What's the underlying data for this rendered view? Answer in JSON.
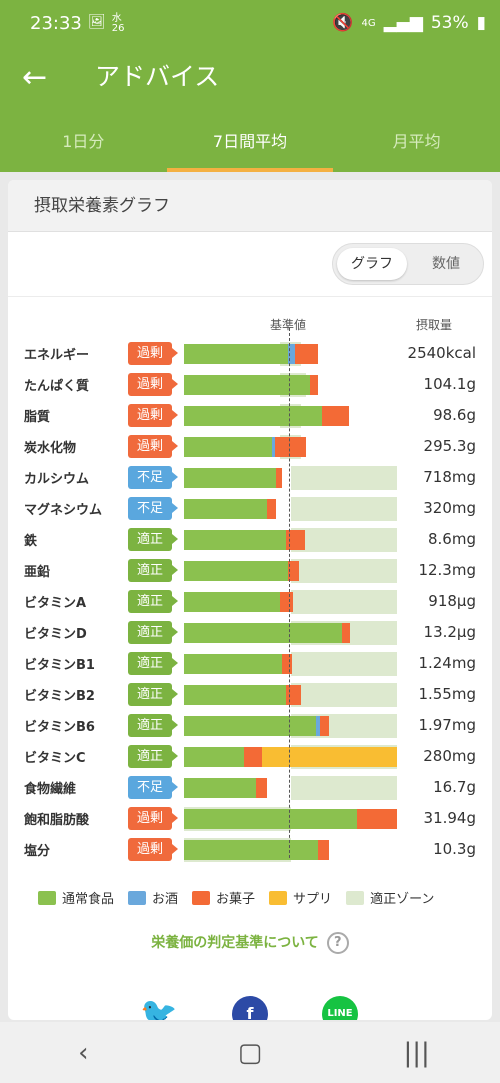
{
  "status_bar": {
    "time": "23:33",
    "day": "水 26",
    "battery": "53%",
    "icons": [
      "image-icon",
      "mute-icon",
      "4g-icon",
      "signal-icon",
      "battery-icon"
    ]
  },
  "app_bar": {
    "title": "アドバイス"
  },
  "tabs": [
    {
      "label": "1日分",
      "active": false
    },
    {
      "label": "7日間平均",
      "active": true
    },
    {
      "label": "月平均",
      "active": false
    }
  ],
  "card": {
    "title": "摂取栄養素グラフ"
  },
  "toggle": {
    "graph": "グラフ",
    "numbers": "数値",
    "selected": "グラフ"
  },
  "chart_headers": {
    "reference": "基準値",
    "intake": "摂取量"
  },
  "chart_data": {
    "type": "bar",
    "stacked": true,
    "categories": [
      "エネルギー",
      "たんぱく質",
      "脂質",
      "炭水化物",
      "カルシウム",
      "マグネシウム",
      "鉄",
      "亜鉛",
      "ビタミンA",
      "ビタミンD",
      "ビタミンB1",
      "ビタミンB2",
      "ビタミンB6",
      "ビタミンC",
      "食物繊維",
      "飽和脂肪酸",
      "塩分"
    ],
    "status": [
      "過剰",
      "過剰",
      "過剰",
      "過剰",
      "不足",
      "不足",
      "適正",
      "適正",
      "適正",
      "適正",
      "適正",
      "適正",
      "適正",
      "適正",
      "不足",
      "過剰",
      "過剰"
    ],
    "intake_labels": [
      "2540kcal",
      "104.1g",
      "98.6g",
      "295.3g",
      "718mg",
      "320mg",
      "8.6mg",
      "12.3mg",
      "918μg",
      "13.2μg",
      "1.24mg",
      "1.55mg",
      "1.97mg",
      "280mg",
      "16.7g",
      "31.94g",
      "10.3g"
    ],
    "reference_percent": 100,
    "series": [
      {
        "name": "通常食品",
        "values": [
          98,
          118,
          130,
          83,
          86,
          78,
          96,
          98,
          90,
          148,
          92,
          96,
          124,
          56,
          68,
          162,
          126
        ]
      },
      {
        "name": "お酒",
        "values": [
          6,
          0,
          0,
          2,
          0,
          0,
          0,
          0,
          0,
          0,
          0,
          0,
          4,
          0,
          0,
          0,
          0
        ]
      },
      {
        "name": "お菓子",
        "values": [
          22,
          8,
          25,
          30,
          6,
          8,
          18,
          10,
          12,
          8,
          9,
          14,
          8,
          17,
          10,
          38,
          10
        ]
      },
      {
        "name": "サプリ",
        "values": [
          0,
          0,
          0,
          0,
          0,
          0,
          0,
          0,
          0,
          0,
          0,
          0,
          0,
          128,
          0,
          0,
          0
        ]
      }
    ],
    "optimal_zone": [
      [
        90,
        110
      ],
      [
        90,
        115
      ],
      [
        90,
        110
      ],
      [
        90,
        110
      ],
      [
        100,
        200
      ],
      [
        100,
        200
      ],
      [
        100,
        200
      ],
      [
        100,
        200
      ],
      [
        100,
        200
      ],
      [
        100,
        200
      ],
      [
        100,
        200
      ],
      [
        100,
        200
      ],
      [
        100,
        200
      ],
      [
        100,
        200
      ],
      [
        100,
        200
      ],
      [
        0,
        100
      ],
      [
        0,
        100
      ]
    ],
    "x_max": 200
  },
  "legend": [
    {
      "label": "通常食品",
      "color": "#8bc14f"
    },
    {
      "label": "お酒",
      "color": "#6aa8dc"
    },
    {
      "label": "お菓子",
      "color": "#f36a36"
    },
    {
      "label": "サプリ",
      "color": "#f9bd32"
    },
    {
      "label": "適正ゾーン",
      "color": "#dde9cf"
    }
  ],
  "criteria_link": "栄養価の判定基準について",
  "share": {
    "line_label": "LINE"
  }
}
